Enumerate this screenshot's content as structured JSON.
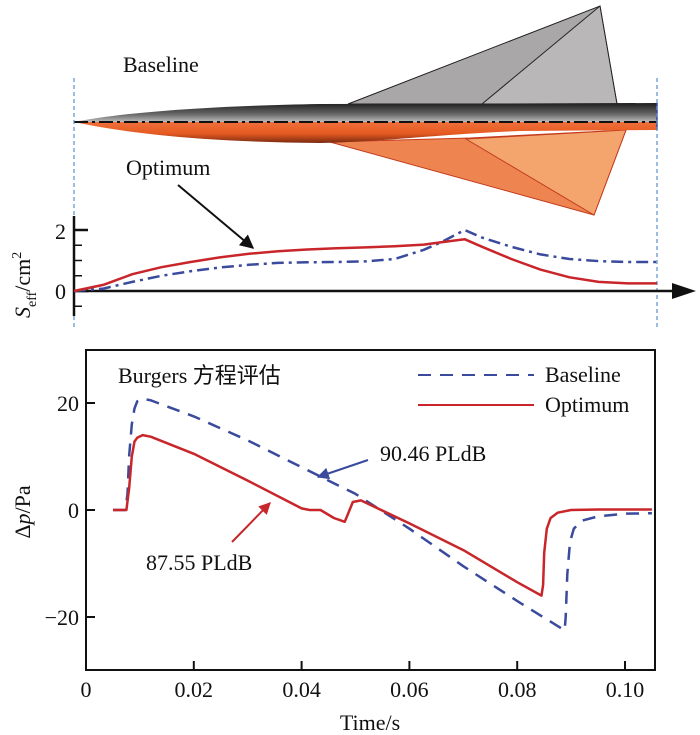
{
  "figure": {
    "top_panel": {
      "baseline_label": "Baseline",
      "optimum_label": "Optimum"
    }
  },
  "colors": {
    "baseline": "#3a4a9c",
    "optimum": "#c8262a",
    "fuselage_dark": "#2e2e2e",
    "fuselage_orange": "#e8622a",
    "wing_gray": "#a8a6a6",
    "wing_gray_light": "#bdbbbb",
    "wing_orange": "#ee8a50",
    "wing_orange_light": "#f4a870",
    "guide_line": "#5b8fd0"
  },
  "chart_data": [
    {
      "type": "line",
      "title": "",
      "ylabel": "S_eff/cm²",
      "ylabel_main": "S",
      "ylabel_sub": "eff",
      "ylabel_unit": "/cm",
      "ylabel_sup": "2",
      "xlabel": "",
      "ylim": [
        -0.8,
        2.2
      ],
      "xlim": [
        0,
        1
      ],
      "yticks": [
        0,
        2
      ],
      "ytick_labels": [
        "0",
        "2"
      ],
      "yminor_ticks": [
        -0.5,
        0.5,
        1.0,
        1.5
      ],
      "annotation": {
        "text": "Optimum",
        "points_to": "optimum"
      },
      "series": [
        {
          "name": "Baseline",
          "style": "dash-dot",
          "x": [
            0.0,
            0.05,
            0.1,
            0.15,
            0.2,
            0.25,
            0.3,
            0.35,
            0.4,
            0.45,
            0.5,
            0.55,
            0.6,
            0.63,
            0.65,
            0.67,
            0.7,
            0.75,
            0.8,
            0.85,
            0.9,
            0.95,
            1.0
          ],
          "values": [
            0.0,
            0.08,
            0.3,
            0.5,
            0.65,
            0.77,
            0.86,
            0.92,
            0.94,
            0.95,
            0.97,
            1.05,
            1.35,
            1.6,
            1.8,
            2.0,
            1.75,
            1.45,
            1.2,
            1.05,
            0.98,
            0.95,
            0.95
          ]
        },
        {
          "name": "Optimum",
          "style": "solid",
          "x": [
            0.0,
            0.05,
            0.1,
            0.15,
            0.2,
            0.25,
            0.3,
            0.35,
            0.4,
            0.45,
            0.5,
            0.55,
            0.6,
            0.63,
            0.65,
            0.67,
            0.7,
            0.75,
            0.8,
            0.85,
            0.9,
            0.95,
            1.0
          ],
          "values": [
            0.0,
            0.2,
            0.55,
            0.78,
            0.95,
            1.1,
            1.22,
            1.3,
            1.36,
            1.4,
            1.43,
            1.47,
            1.52,
            1.6,
            1.65,
            1.7,
            1.45,
            1.05,
            0.7,
            0.45,
            0.3,
            0.25,
            0.25
          ]
        }
      ]
    },
    {
      "type": "line",
      "title": "",
      "annotation_title": "Burgers 方程评估",
      "xlabel": "Time/s",
      "ylabel": "Δp/Pa",
      "ylabel_delta": "Δ",
      "ylabel_var": "p",
      "ylabel_unit": "/Pa",
      "xlim": [
        0,
        0.105
      ],
      "ylim": [
        -30,
        30
      ],
      "xticks": [
        0,
        0.02,
        0.04,
        0.06,
        0.08,
        0.1
      ],
      "xtick_labels": [
        "0",
        "0.02",
        "0.04",
        "0.06",
        "0.08",
        "0.10"
      ],
      "yticks": [
        -20,
        0,
        20
      ],
      "ytick_labels": [
        "−20",
        "0",
        "20"
      ],
      "legend": {
        "position": "top-right",
        "entries": [
          "Baseline",
          "Optimum"
        ]
      },
      "annotations": [
        {
          "text": "90.46 PLdB",
          "series": "Baseline"
        },
        {
          "text": "87.55 PLdB",
          "series": "Optimum"
        }
      ],
      "series": [
        {
          "name": "Baseline",
          "style": "dashed",
          "x": [
            0.005,
            0.0073,
            0.0077,
            0.008,
            0.0085,
            0.009,
            0.0095,
            0.0105,
            0.012,
            0.02,
            0.03,
            0.04,
            0.045,
            0.05,
            0.06,
            0.07,
            0.08,
            0.088,
            0.0888,
            0.089,
            0.0893,
            0.0898,
            0.0905,
            0.092,
            0.095,
            0.1,
            0.105
          ],
          "values": [
            0.0,
            0.0,
            3.0,
            10.0,
            16.0,
            19.0,
            20.3,
            20.8,
            20.5,
            17.5,
            13.0,
            8.0,
            5.5,
            3.0,
            -3.5,
            -10.5,
            -17.0,
            -22.0,
            -22.5,
            -20.0,
            -12.0,
            -6.0,
            -3.5,
            -2.0,
            -1.2,
            -0.7,
            -0.6
          ]
        },
        {
          "name": "Optimum",
          "style": "solid",
          "x": [
            0.005,
            0.0075,
            0.008,
            0.0085,
            0.009,
            0.0095,
            0.0105,
            0.012,
            0.02,
            0.03,
            0.04,
            0.0415,
            0.0435,
            0.046,
            0.048,
            0.0487,
            0.0495,
            0.051,
            0.06,
            0.07,
            0.08,
            0.0845,
            0.0848,
            0.085,
            0.0855,
            0.0862,
            0.0875,
            0.09,
            0.095,
            0.105
          ],
          "values": [
            0.0,
            0.0,
            4.0,
            10.0,
            12.8,
            13.5,
            14.0,
            13.7,
            10.5,
            5.5,
            0.3,
            0.0,
            0.0,
            -1.5,
            -2.2,
            -0.5,
            1.5,
            1.8,
            -2.5,
            -7.5,
            -13.5,
            -16.0,
            -14.0,
            -8.0,
            -3.5,
            -1.5,
            -0.5,
            0.0,
            0.1,
            0.1
          ]
        }
      ]
    }
  ]
}
